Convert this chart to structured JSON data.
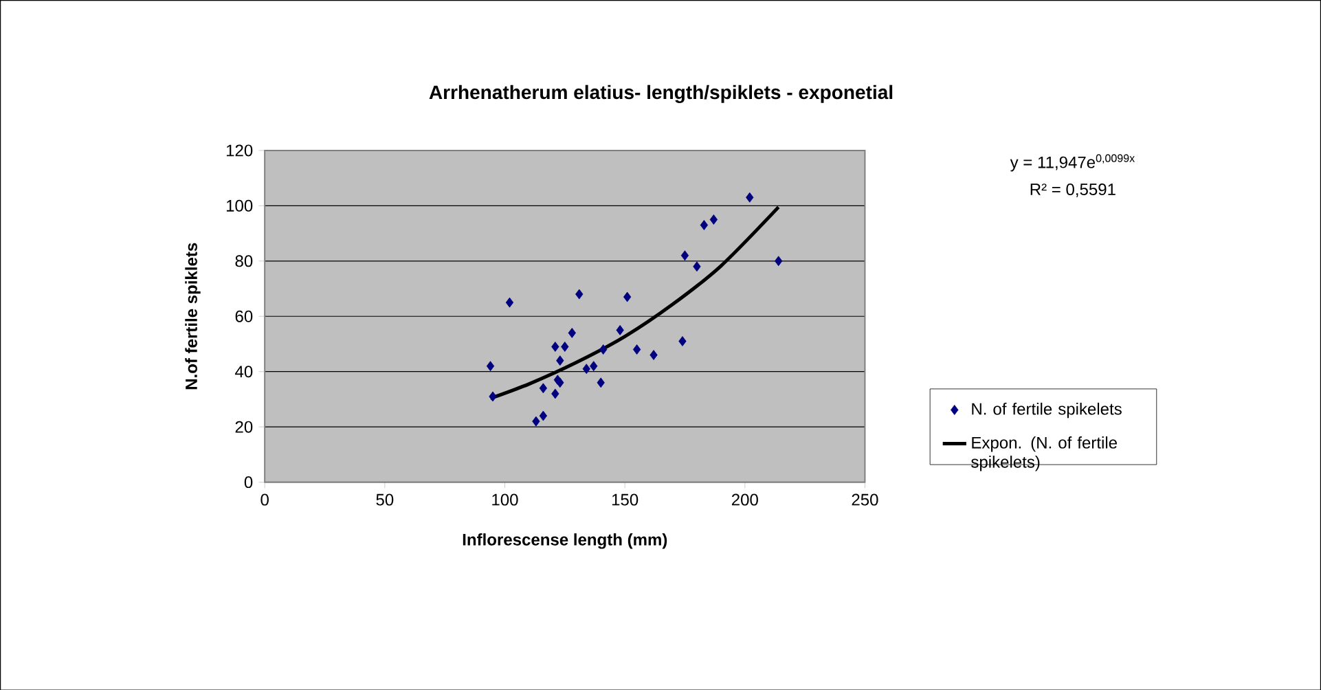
{
  "chart_data": {
    "type": "scatter",
    "title": "Arrhenatherum elatius- length/spiklets - exponetial",
    "xlabel": "Inflorescense length (mm)",
    "ylabel": "N.of fertile spiklets",
    "annotations": [
      "y = 11,947e$^{0,0099x}$",
      "R² = 0,5591"
    ],
    "xlim": [
      0,
      250
    ],
    "ylim": [
      0,
      120
    ],
    "xticks": [
      0,
      50,
      100,
      150,
      200,
      250
    ],
    "yticks": [
      0,
      20,
      40,
      60,
      80,
      100,
      120
    ],
    "grid": "y",
    "legend": "right",
    "marker": "diamond",
    "series": [
      {
        "name": "N. of fertile spikelets",
        "color": "#000080",
        "x": [
          94,
          95,
          102,
          113,
          116,
          116,
          121,
          121,
          122,
          123,
          123,
          125,
          128,
          131,
          134,
          137,
          140,
          141,
          148,
          151,
          155,
          162,
          174,
          175,
          180,
          183,
          187,
          202,
          214
        ],
        "values": [
          42,
          31,
          65,
          22,
          24,
          34,
          49,
          32,
          37,
          44,
          36,
          49,
          54,
          68,
          41,
          42,
          36,
          48,
          55,
          67,
          48,
          46,
          51,
          82,
          78,
          93,
          95,
          103,
          80
        ]
      },
      {
        "name": "Expon. (N. of fertile spikelets)",
        "type": "line",
        "color": "#000000",
        "marker": "none",
        "x": [
          94,
          110,
          130,
          150,
          170,
          190,
          214
        ],
        "values": [
          30.3,
          35.5,
          43.4,
          52.7,
          64.4,
          78.2,
          99.5
        ]
      }
    ]
  }
}
